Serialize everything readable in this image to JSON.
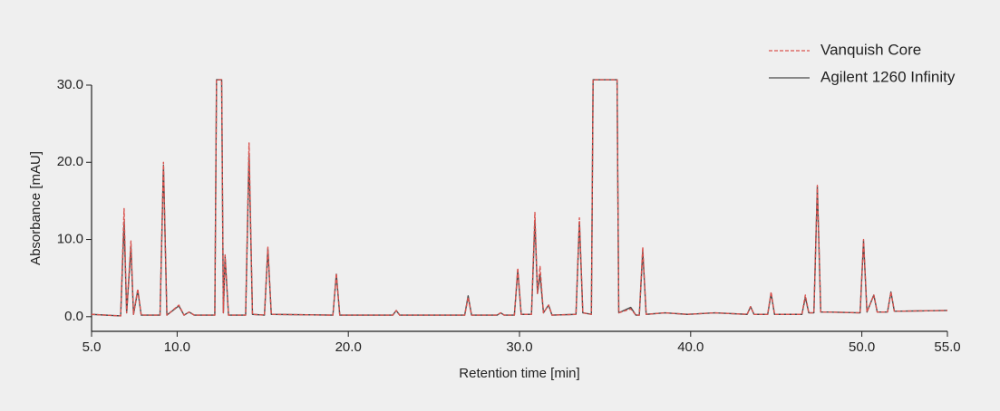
{
  "chart_data": {
    "type": "line",
    "xlabel": "Retention time [min]",
    "ylabel": "Absorbance [mAU]",
    "x": [
      5.0,
      6.7,
      6.9,
      7.05,
      7.3,
      7.45,
      7.7,
      7.9,
      9.0,
      9.2,
      9.4,
      10.1,
      10.4,
      10.7,
      11.0,
      12.2,
      12.3,
      12.6,
      12.7,
      12.8,
      13.0,
      14.0,
      14.2,
      14.4,
      15.1,
      15.3,
      15.5,
      19.1,
      19.3,
      19.5,
      22.6,
      22.8,
      23.0,
      26.8,
      27.0,
      27.2,
      28.7,
      28.9,
      29.1,
      29.7,
      29.9,
      30.1,
      30.7,
      30.9,
      31.05,
      31.2,
      31.4,
      31.7,
      31.9,
      33.3,
      33.5,
      33.7,
      34.2,
      34.3,
      35.7,
      35.8,
      36.5,
      36.8,
      37.0,
      37.2,
      37.4,
      38.5,
      39.8,
      41.4,
      43.3,
      43.5,
      43.7,
      44.5,
      44.7,
      44.9,
      46.5,
      46.7,
      46.9,
      47.2,
      47.4,
      47.6,
      48.0,
      49.9,
      50.1,
      50.3,
      50.7,
      50.9,
      51.5,
      51.7,
      51.9,
      55.0
    ],
    "series": [
      {
        "name": "Vanquish Core",
        "color": "#d9534f",
        "dashed": true,
        "values": [
          0.3,
          0.1,
          14,
          0.5,
          9.8,
          0.3,
          3.6,
          0.2,
          0.2,
          20,
          0.2,
          1.5,
          0.2,
          0.6,
          0.2,
          0.2,
          30.7,
          30.7,
          0.5,
          8,
          0.2,
          0.2,
          22.5,
          0.3,
          0.2,
          9,
          0.3,
          0.2,
          5.6,
          0.2,
          0.2,
          0.8,
          0.2,
          0.2,
          2.5,
          0.2,
          0.2,
          0.5,
          0.2,
          0.2,
          6.3,
          0.3,
          0.3,
          13.5,
          3,
          6.5,
          0.5,
          1.5,
          0.2,
          0.3,
          12.8,
          0.5,
          0.3,
          30.7,
          30.7,
          0.5,
          1,
          0.2,
          0.2,
          9,
          0.3,
          0.5,
          0.3,
          0.5,
          0.3,
          1.3,
          0.3,
          0.3,
          3.2,
          0.3,
          0.3,
          2.8,
          0.5,
          0.5,
          17,
          0.6,
          0.6,
          0.5,
          10,
          0.6,
          2.8,
          0.6,
          0.6,
          3.2,
          0.7,
          0.8
        ]
      },
      {
        "name": "Agilent 1260 Infinity",
        "color": "#4a4a4a",
        "dashed": false,
        "values": [
          0.3,
          0.1,
          12.3,
          0.5,
          9,
          0.3,
          3.4,
          0.2,
          0.2,
          19.6,
          0.2,
          1.4,
          0.2,
          0.6,
          0.2,
          0.2,
          30.7,
          30.7,
          0.5,
          7.8,
          0.2,
          0.2,
          21,
          0.3,
          0.2,
          8.8,
          0.3,
          0.2,
          5.5,
          0.2,
          0.2,
          0.8,
          0.2,
          0.2,
          2.7,
          0.2,
          0.2,
          0.5,
          0.2,
          0.2,
          6,
          0.3,
          0.3,
          12.5,
          3,
          5.5,
          0.5,
          1.5,
          0.2,
          0.3,
          12.3,
          0.5,
          0.3,
          30.7,
          30.7,
          0.5,
          1.2,
          0.2,
          0.2,
          8.5,
          0.3,
          0.5,
          0.3,
          0.5,
          0.3,
          1.3,
          0.3,
          0.3,
          3,
          0.3,
          0.3,
          2.5,
          0.5,
          0.5,
          16.8,
          0.6,
          0.6,
          0.5,
          9.8,
          0.6,
          2.8,
          0.6,
          0.6,
          3.2,
          0.7,
          0.8
        ]
      }
    ],
    "xlim": [
      5,
      55
    ],
    "ylim": [
      -1.9,
      30
    ],
    "xticks": [
      {
        "value": 5,
        "label": "5.0"
      },
      {
        "value": 10,
        "label": "10.0"
      },
      {
        "value": 20,
        "label": "20.0"
      },
      {
        "value": 30,
        "label": "30.0"
      },
      {
        "value": 40,
        "label": "40.0"
      },
      {
        "value": 50,
        "label": "50.0"
      },
      {
        "value": 55,
        "label": "55.0"
      }
    ],
    "yticks": [
      {
        "value": 0,
        "label": "0.0"
      },
      {
        "value": 10,
        "label": "10.0"
      },
      {
        "value": 20,
        "label": "20.0"
      },
      {
        "value": 30,
        "label": "30.0"
      }
    ],
    "legend": "top-right",
    "grid": false
  }
}
